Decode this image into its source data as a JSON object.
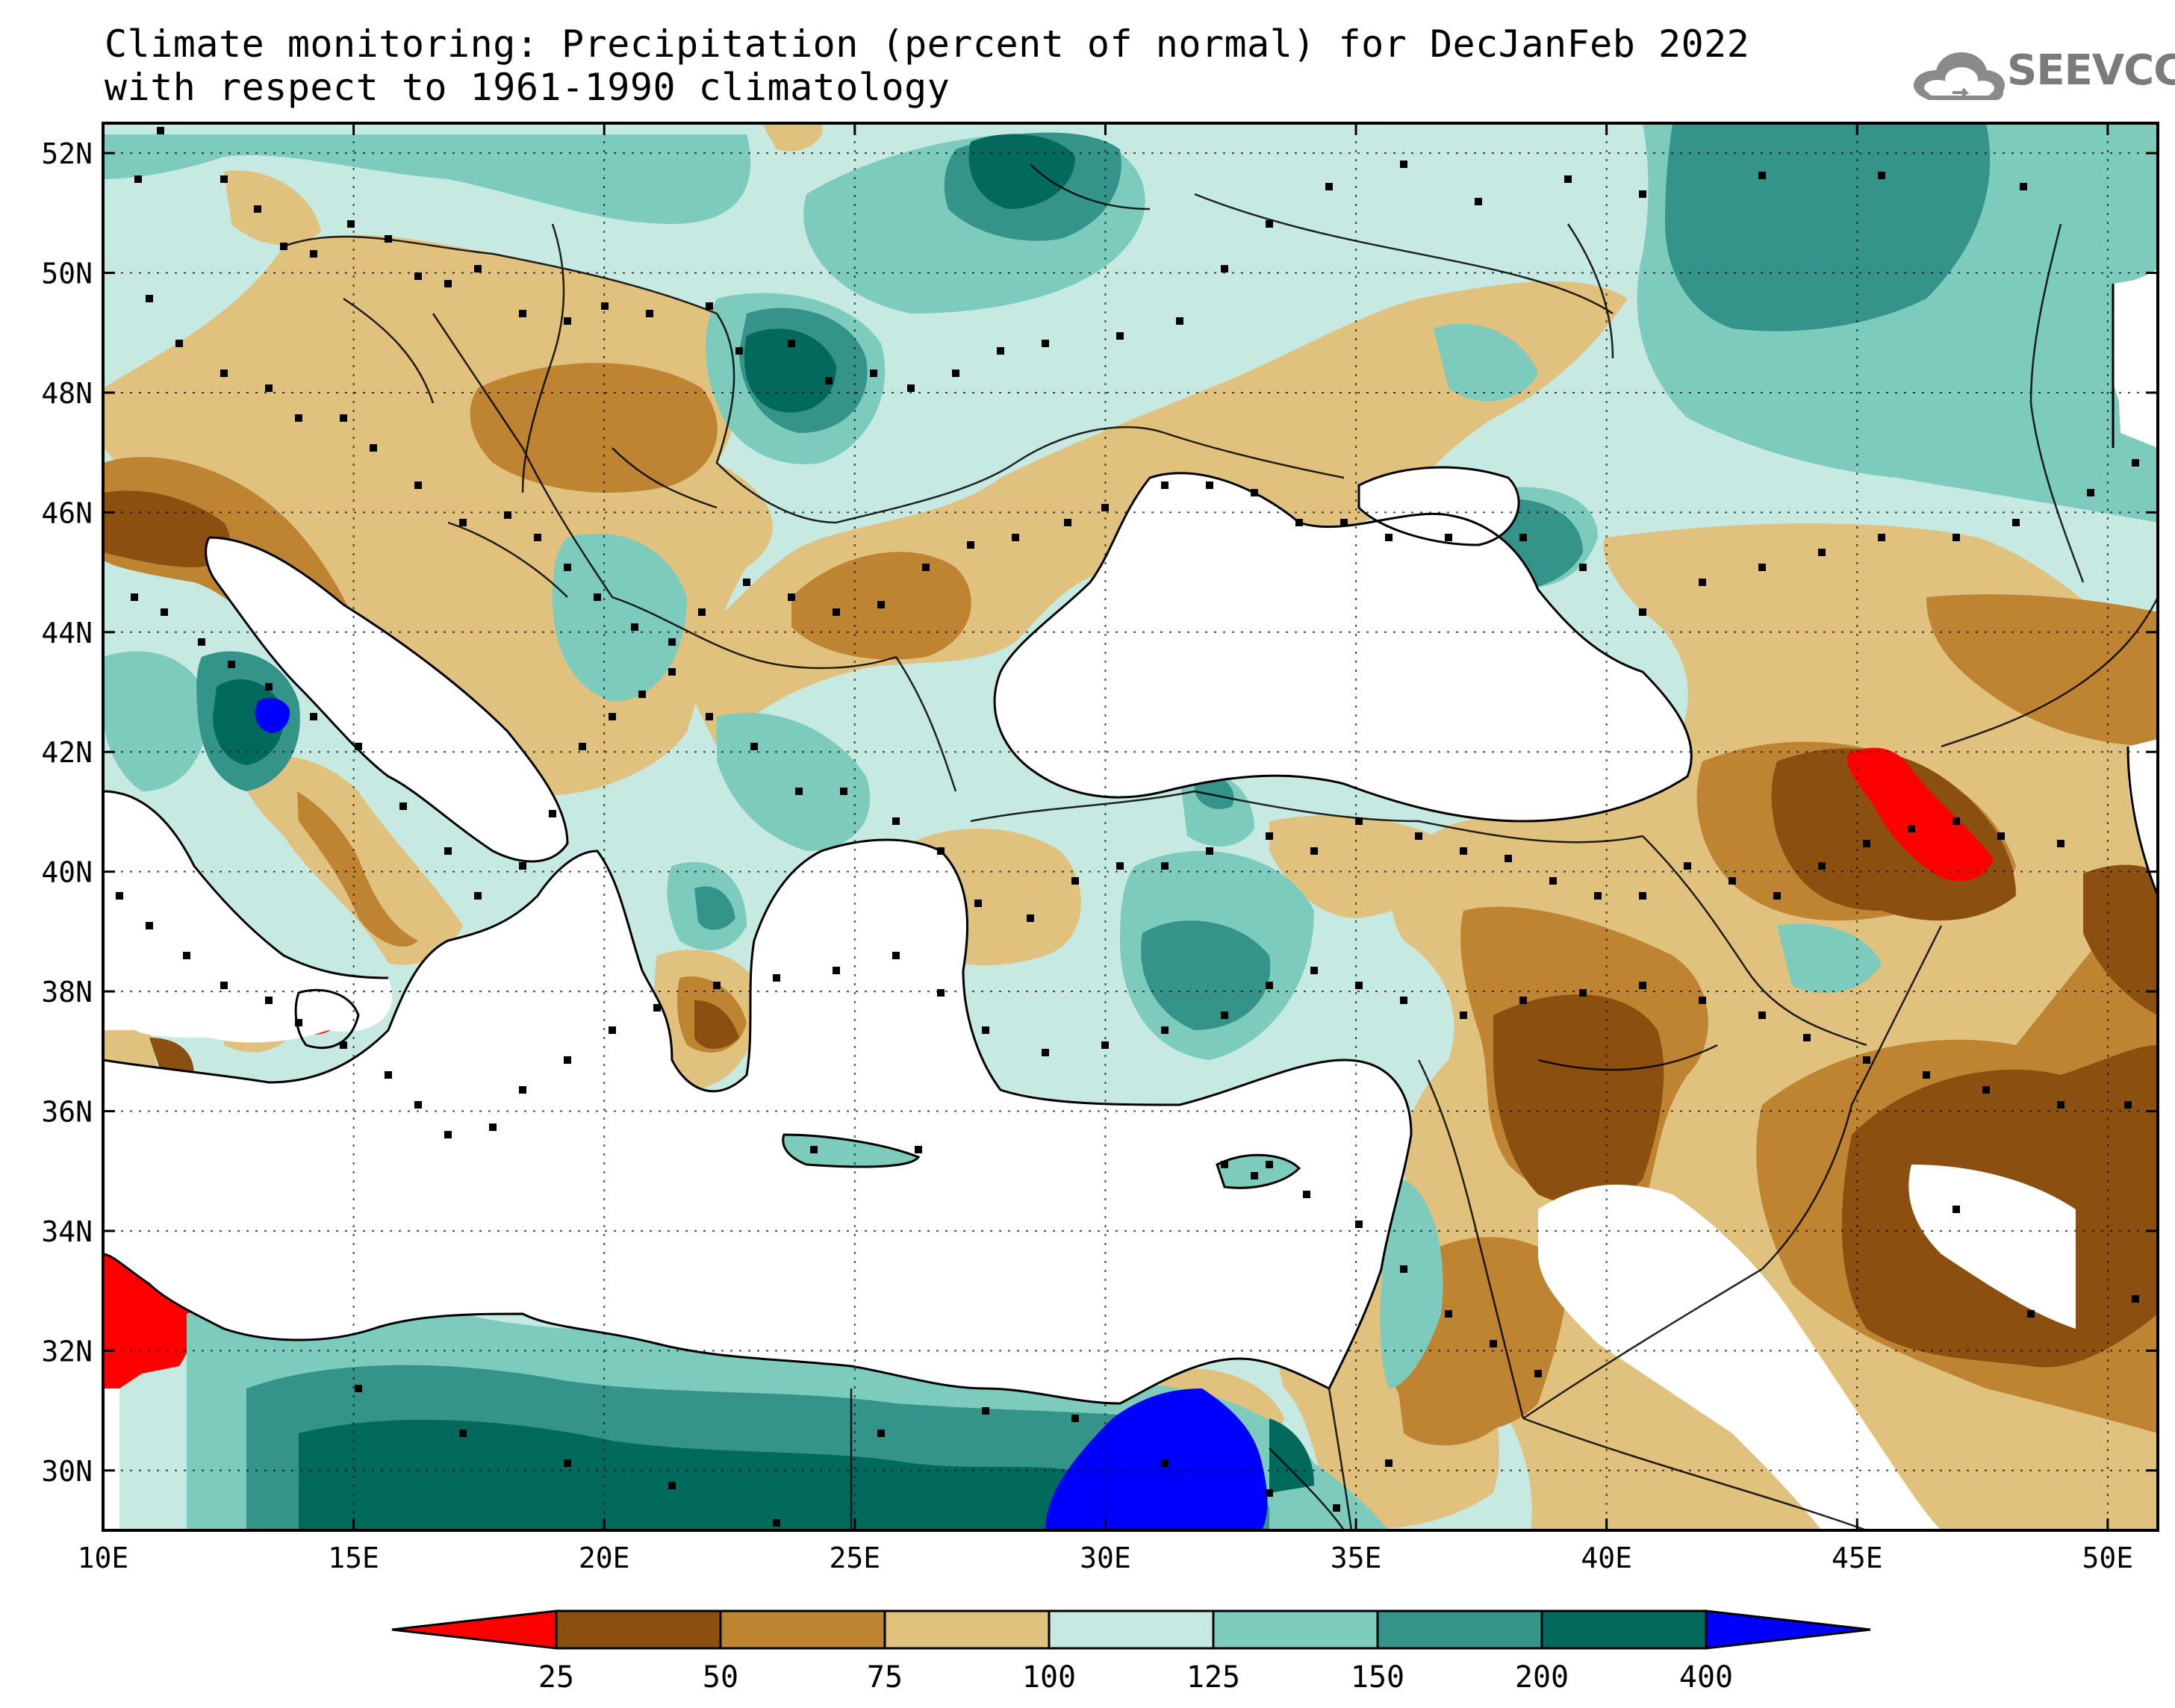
{
  "title": {
    "line1": "Climate monitoring: Precipitation (percent of normal) for DecJanFeb 2022",
    "line2": "with respect to 1961-1990 climatology"
  },
  "logo": {
    "text": "SEEVCCC",
    "icon": "cloud-icon",
    "color": "#7b7b7b"
  },
  "map": {
    "lon_range": [
      10,
      51
    ],
    "lat_range": [
      29,
      52.5
    ],
    "y_ticks": [
      "52N",
      "50N",
      "48N",
      "46N",
      "44N",
      "42N",
      "40N",
      "38N",
      "36N",
      "34N",
      "32N",
      "30N"
    ],
    "x_ticks": [
      "10E",
      "15E",
      "20E",
      "25E",
      "30E",
      "35E",
      "40E",
      "45E",
      "50E"
    ],
    "grid": "dotted"
  },
  "colorbar": {
    "labels": [
      "25",
      "50",
      "75",
      "100",
      "125",
      "150",
      "200",
      "400"
    ],
    "colors": [
      "#ff0000",
      "#8b5010",
      "#bf8432",
      "#e0c27e",
      "#c6e9e2",
      "#7ccbbd",
      "#359489",
      "#016a5c",
      "#0000ff"
    ]
  }
}
